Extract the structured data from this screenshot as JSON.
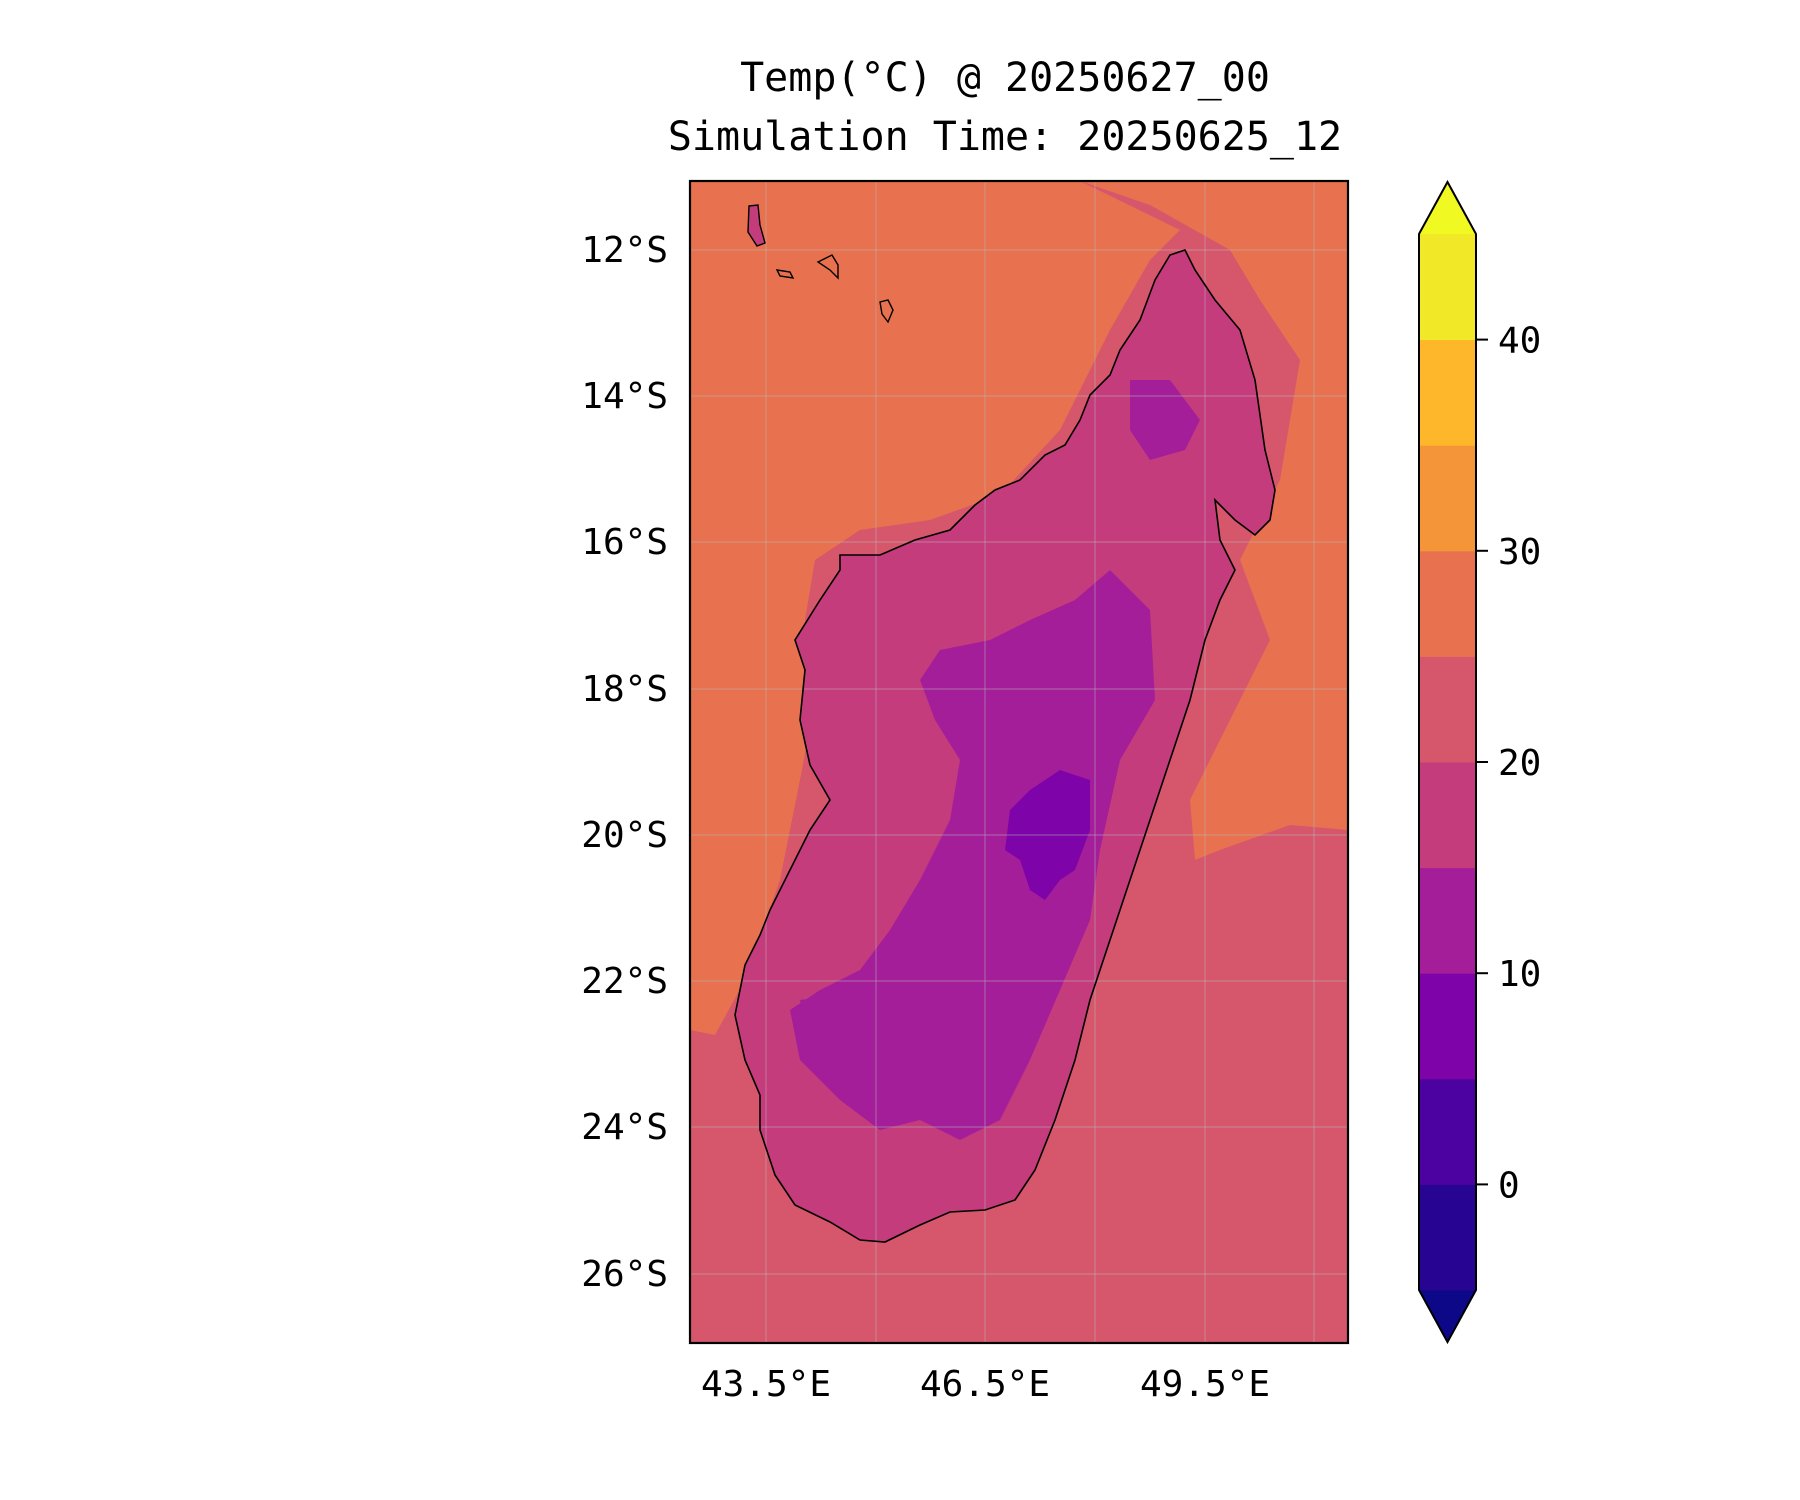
{
  "title": "Temp(°C) @ 20250627_00",
  "subtitle": "Simulation Time: 20250625_12",
  "map": {
    "region": "Madagascar",
    "lat_labels": [
      "12°S",
      "14°S",
      "16°S",
      "18°S",
      "20°S",
      "22°S",
      "24°S",
      "26°S"
    ],
    "lon_labels": [
      "43.5°E",
      "46.5°E",
      "49.5°E"
    ],
    "lat_range": [
      -27,
      -11.1
    ],
    "lon_range": [
      42.5,
      51.5
    ],
    "gridlines": true
  },
  "colorbar": {
    "tick_labels": [
      "0",
      "10",
      "20",
      "30",
      "40"
    ],
    "levels": [
      -5,
      0,
      5,
      10,
      15,
      20,
      25,
      30,
      35,
      40,
      45
    ],
    "extend": "both",
    "colors": [
      "#0d0887",
      "#270592",
      "#4c02a1",
      "#7e03a8",
      "#a41e9a",
      "#c43c7c",
      "#d6566c",
      "#e8714f",
      "#f59539",
      "#feb72a",
      "#f1e828",
      "#f0f921"
    ]
  },
  "field_colors": {
    "ocean_warm": "#e8714f",
    "ocean_cool": "#d6566c",
    "land": "#c43c7c",
    "highland": "#a41e9a",
    "peak": "#7e03a8"
  }
}
